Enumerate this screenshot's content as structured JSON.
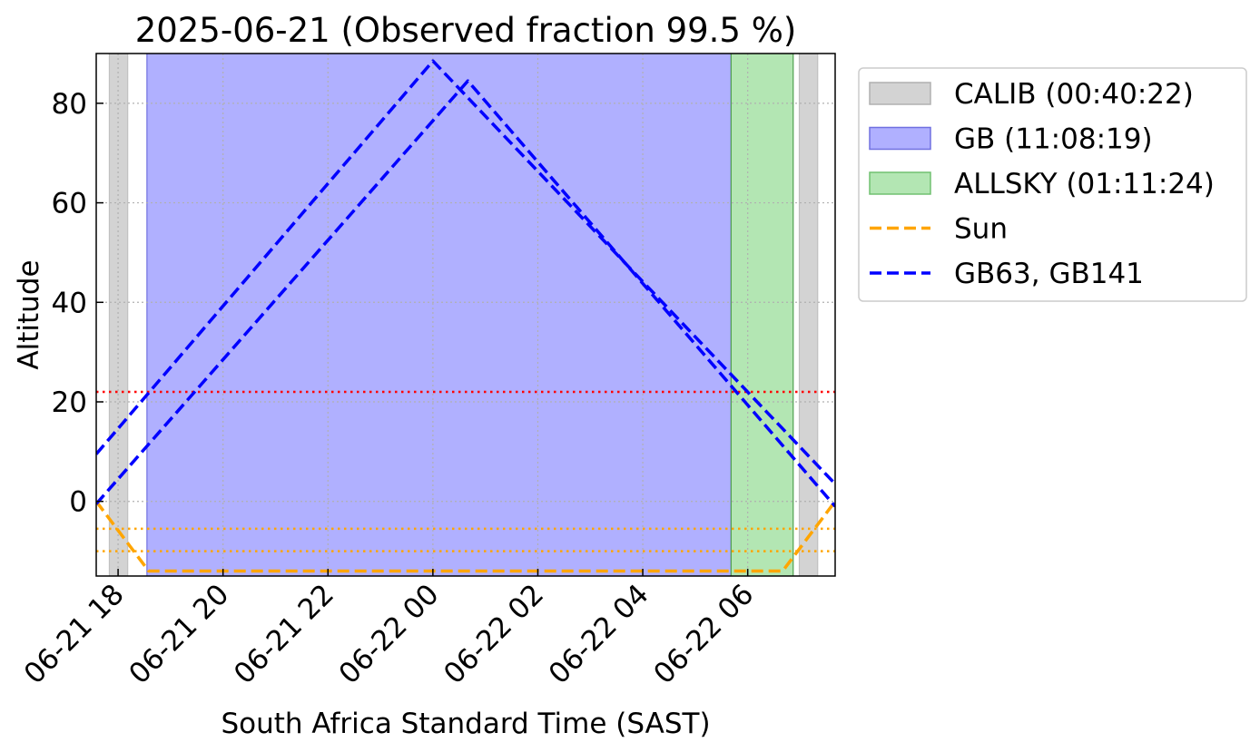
{
  "chart_data": {
    "type": "line",
    "title": "2025-06-21 (Observed fraction 99.5 %)",
    "xlabel": "South Africa Standard Time (SAST)",
    "ylabel": "Altitude",
    "x_unit": "datetime (SAST)",
    "xlim": [
      "2025-06-21 17:35",
      "2025-06-22 07:40"
    ],
    "ylim": [
      -15,
      90
    ],
    "x_ticks": [
      {
        "value": "2025-06-21 18:00",
        "label": "06-21 18"
      },
      {
        "value": "2025-06-21 20:00",
        "label": "06-21 20"
      },
      {
        "value": "2025-06-21 22:00",
        "label": "06-21 22"
      },
      {
        "value": "2025-06-22 00:00",
        "label": "06-22 00"
      },
      {
        "value": "2025-06-22 02:00",
        "label": "06-22 02"
      },
      {
        "value": "2025-06-22 04:00",
        "label": "06-22 04"
      },
      {
        "value": "2025-06-22 06:00",
        "label": "06-22 06"
      }
    ],
    "y_ticks": [
      0,
      20,
      40,
      60,
      80
    ],
    "grid": true,
    "legend_position": "outside right",
    "spans": [
      {
        "name": "CALIB (00:40:22)",
        "color": "#d3d3d3",
        "start": "2025-06-21 17:50",
        "end": "2025-06-21 18:11"
      },
      {
        "name": "CALIB (00:40:22)",
        "color": "#d3d3d3",
        "start": "2025-06-22 06:59",
        "end": "2025-06-22 07:20"
      },
      {
        "name": "GB (11:08:19)",
        "color": "#b0b0ff",
        "start": "2025-06-21 18:33",
        "end": "2025-06-22 05:41"
      },
      {
        "name": "ALLSKY (01:11:24)",
        "color": "#b3e6b3",
        "start": "2025-06-22 05:41",
        "end": "2025-06-22 06:52"
      }
    ],
    "hlines": [
      {
        "y": 22,
        "color": "#ff0000"
      },
      {
        "y": -5.5,
        "color": "#ffa500"
      },
      {
        "y": -10,
        "color": "#ffa500"
      }
    ],
    "series": [
      {
        "name": "Sun",
        "color": "#ffa500",
        "x": [
          "2025-06-21 17:35",
          "2025-06-21 18:35",
          "2025-06-22 06:40",
          "2025-06-22 07:40"
        ],
        "y": [
          0,
          -14,
          -14,
          0
        ]
      },
      {
        "name": "GB63, GB141",
        "color": "#0000ff",
        "x": [
          "2025-06-21 17:35",
          "2025-06-22 00:00",
          "2025-06-22 07:40"
        ],
        "y": [
          9.5,
          88.5,
          3.5
        ]
      },
      {
        "name": "GB63, GB141",
        "color": "#0000ff",
        "x": [
          "2025-06-21 17:35",
          "2025-06-22 00:40",
          "2025-06-22 07:40"
        ],
        "y": [
          -0.5,
          84.5,
          -1
        ]
      }
    ],
    "legend": [
      {
        "label": "CALIB (00:40:22)",
        "kind": "patch",
        "color": "#d3d3d3",
        "edge": "#b0b0b0"
      },
      {
        "label": "GB (11:08:19)",
        "kind": "patch",
        "color": "#b0b0ff",
        "edge": "#7070e0"
      },
      {
        "label": "ALLSKY (01:11:24)",
        "kind": "patch",
        "color": "#b3e6b3",
        "edge": "#70c070"
      },
      {
        "label": "Sun",
        "kind": "line",
        "color": "#ffa500"
      },
      {
        "label": "GB63, GB141",
        "kind": "line",
        "color": "#0000ff"
      }
    ]
  }
}
